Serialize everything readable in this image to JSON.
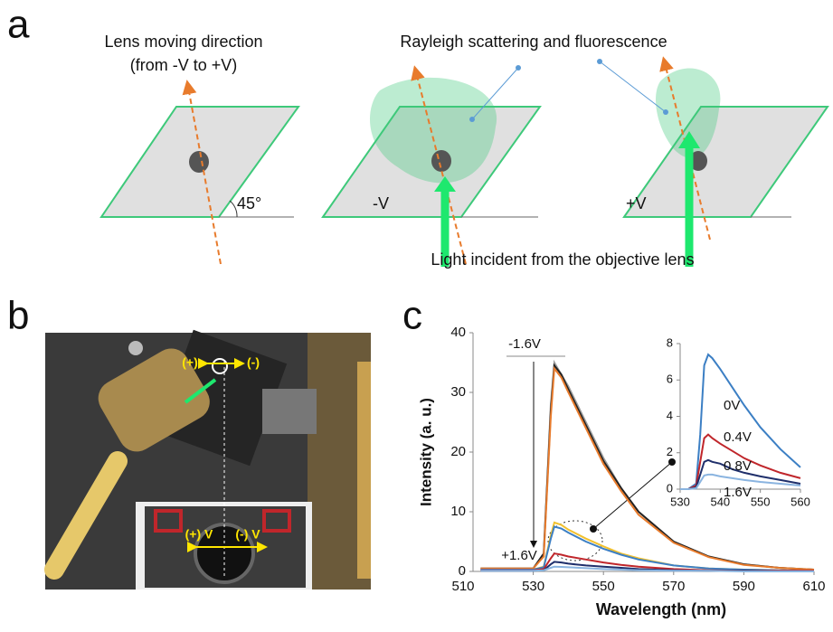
{
  "panel_labels": [
    "a",
    "b",
    "c"
  ],
  "diagram_a": {
    "lens_direction": "Lens moving direction",
    "lens_direction_sub": "(from -V to +V)",
    "scattering": "Rayleigh scattering and fluorescence",
    "angle": "45°",
    "minus_v": "-V",
    "plus_v": "+V",
    "incident": "Light incident from the objective lens"
  },
  "photo_b": {
    "labels": [
      "(+)",
      "(-)",
      "(+) V",
      "(-) V"
    ]
  },
  "chart_data": [
    {
      "type": "line",
      "xlabel": "Wavelength (nm)",
      "ylabel": "Intensity (a. u.)",
      "xlim": [
        510,
        610
      ],
      "xticks": [
        510,
        530,
        550,
        570,
        590,
        610
      ],
      "ylim": [
        0,
        40
      ],
      "yticks": [
        0,
        10,
        20,
        30,
        40
      ],
      "annotations": [
        "-1.6V",
        "+1.6V"
      ],
      "x": [
        515,
        530,
        533,
        535,
        536,
        538,
        540,
        545,
        550,
        555,
        560,
        570,
        580,
        590,
        600,
        610
      ],
      "series": [
        {
          "color": "#9e9e9e",
          "values": [
            0.5,
            0.5,
            3,
            28,
            35,
            33,
            31,
            25,
            19,
            14,
            10,
            5,
            2.5,
            1.2,
            0.6,
            0.3
          ]
        },
        {
          "color": "#222222",
          "values": [
            0.5,
            0.5,
            3,
            27,
            34.5,
            33,
            30.5,
            24.5,
            18.5,
            14,
            10,
            5,
            2.5,
            1.2,
            0.6,
            0.3
          ]
        },
        {
          "color": "#e87b2c",
          "values": [
            0.5,
            0.5,
            2.5,
            26,
            34,
            32.5,
            30,
            24,
            18,
            13.5,
            9.5,
            4.8,
            2.4,
            1.1,
            0.6,
            0.3
          ]
        },
        {
          "color": "#f2c12e",
          "values": [
            0.3,
            0.3,
            0.8,
            6,
            8.2,
            7.8,
            7,
            5.5,
            4.2,
            3,
            2.2,
            1,
            0.5,
            0.3,
            0.2,
            0.1
          ]
        },
        {
          "color": "#3c7fc4",
          "values": [
            0.3,
            0.3,
            0.7,
            5.5,
            7.5,
            7.2,
            6.5,
            5,
            3.8,
            2.8,
            2,
            1,
            0.5,
            0.3,
            0.2,
            0.1
          ]
        },
        {
          "color": "#c0262b",
          "values": [
            0.2,
            0.2,
            0.4,
            2.2,
            3,
            2.8,
            2.5,
            2,
            1.5,
            1.1,
            0.8,
            0.4,
            0.2,
            0.1,
            0.1,
            0.1
          ]
        },
        {
          "color": "#1f2f6b",
          "values": [
            0.1,
            0.1,
            0.2,
            1.2,
            1.6,
            1.5,
            1.3,
            1,
            0.8,
            0.6,
            0.4,
            0.2,
            0.1,
            0.1,
            0,
            0
          ]
        },
        {
          "color": "#8ab4e0",
          "values": [
            0.1,
            0.1,
            0.2,
            0.6,
            0.8,
            0.75,
            0.7,
            0.55,
            0.4,
            0.3,
            0.2,
            0.1,
            0.1,
            0,
            0,
            0
          ]
        }
      ]
    },
    {
      "type": "line",
      "xlim": [
        530,
        560
      ],
      "xticks": [
        530,
        540,
        550,
        560
      ],
      "ylim": [
        0,
        8
      ],
      "yticks": [
        0,
        2,
        4,
        6,
        8
      ],
      "x": [
        530,
        532,
        534,
        535,
        536,
        537,
        538,
        540,
        543,
        546,
        550,
        555,
        560
      ],
      "series": [
        {
          "name": "0V",
          "color": "#3c7fc4",
          "values": [
            0,
            0,
            0.3,
            3,
            6.8,
            7.4,
            7.2,
            6.6,
            5.6,
            4.6,
            3.4,
            2.2,
            1.2
          ]
        },
        {
          "name": "0.4V",
          "color": "#c0262b",
          "values": [
            0,
            0,
            0.2,
            1.5,
            2.8,
            3,
            2.8,
            2.5,
            2.1,
            1.7,
            1.3,
            0.9,
            0.6
          ]
        },
        {
          "name": "0.8V",
          "color": "#1f2f6b",
          "values": [
            0,
            0,
            0.1,
            0.8,
            1.5,
            1.6,
            1.5,
            1.4,
            1.1,
            0.9,
            0.7,
            0.5,
            0.3
          ]
        },
        {
          "name": "1.6V",
          "color": "#8ab4e0",
          "values": [
            0,
            0,
            0.05,
            0.4,
            0.75,
            0.8,
            0.8,
            0.7,
            0.6,
            0.5,
            0.4,
            0.3,
            0.2
          ]
        }
      ]
    }
  ]
}
